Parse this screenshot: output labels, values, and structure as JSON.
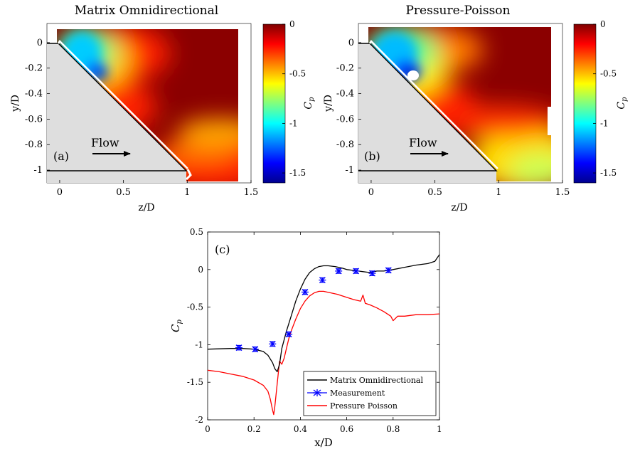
{
  "chart_data": [
    {
      "type": "heatmap",
      "panel_label": "(a)",
      "title": "Matrix Omnidirectional",
      "xlabel": "z/D",
      "ylabel": "y/D",
      "xlim": [
        -0.1,
        1.5
      ],
      "ylim": [
        -1.1,
        0.15
      ],
      "xticks": [
        "0",
        "0.5",
        "1",
        "1.5"
      ],
      "yticks": [
        "0",
        "-0.2",
        "-0.4",
        "-0.6",
        "-0.8",
        "-1"
      ],
      "annotation": "Flow",
      "colorbar": {
        "label": "C",
        "label_sub": "p",
        "min": -1.6,
        "max": 0,
        "ticks": [
          "0",
          "-0.5",
          "-1",
          "-1.5"
        ]
      }
    },
    {
      "type": "heatmap",
      "panel_label": "(b)",
      "title": "Pressure-Poisson",
      "xlabel": "z/D",
      "ylabel": "y/D",
      "xlim": [
        -0.1,
        1.5
      ],
      "ylim": [
        -1.1,
        0.15
      ],
      "xticks": [
        "0",
        "0.5",
        "1",
        "1.5"
      ],
      "yticks": [
        "0",
        "-0.2",
        "-0.4",
        "-0.6",
        "-0.8",
        "-1"
      ],
      "annotation": "Flow",
      "colorbar": {
        "label": "C",
        "label_sub": "p",
        "min": -1.6,
        "max": 0,
        "ticks": [
          "0",
          "-0.5",
          "-1",
          "-1.5"
        ]
      }
    },
    {
      "type": "line",
      "panel_label": "(c)",
      "xlabel": "x/D",
      "ylabel": "C",
      "ylabel_sub": "p",
      "xlim": [
        0,
        1
      ],
      "ylim": [
        -2,
        0.5
      ],
      "xticks": [
        "0",
        "0.2",
        "0.4",
        "0.6",
        "0.8",
        "1"
      ],
      "yticks": [
        "0.5",
        "0",
        "-0.5",
        "-1",
        "-1.5",
        "-2"
      ],
      "series": [
        {
          "name": "Matrix Omnidirectional",
          "color": "#000000",
          "x": [
            0,
            0.05,
            0.1,
            0.15,
            0.2,
            0.24,
            0.26,
            0.28,
            0.29,
            0.3,
            0.31,
            0.32,
            0.34,
            0.36,
            0.38,
            0.4,
            0.42,
            0.44,
            0.46,
            0.48,
            0.5,
            0.52,
            0.55,
            0.58,
            0.6,
            0.65,
            0.7,
            0.73,
            0.76,
            0.8,
            0.85,
            0.9,
            0.95,
            0.98,
            1.0
          ],
          "y": [
            -1.06,
            -1.055,
            -1.05,
            -1.05,
            -1.06,
            -1.09,
            -1.14,
            -1.24,
            -1.32,
            -1.36,
            -1.26,
            -1.05,
            -0.82,
            -0.62,
            -0.42,
            -0.26,
            -0.13,
            -0.04,
            0.01,
            0.04,
            0.05,
            0.05,
            0.04,
            0.02,
            0.0,
            -0.02,
            -0.04,
            -0.02,
            -0.02,
            0.0,
            0.03,
            0.06,
            0.08,
            0.11,
            0.2
          ]
        },
        {
          "name": "Pressure Poisson",
          "color": "#ff0000",
          "x": [
            0,
            0.05,
            0.1,
            0.15,
            0.2,
            0.24,
            0.26,
            0.27,
            0.28,
            0.285,
            0.29,
            0.3,
            0.31,
            0.32,
            0.33,
            0.34,
            0.35,
            0.36,
            0.38,
            0.4,
            0.42,
            0.44,
            0.46,
            0.48,
            0.5,
            0.53,
            0.56,
            0.6,
            0.63,
            0.66,
            0.67,
            0.68,
            0.7,
            0.73,
            0.76,
            0.79,
            0.8,
            0.82,
            0.85,
            0.9,
            0.95,
            1.0
          ],
          "y": [
            -1.34,
            -1.36,
            -1.39,
            -1.42,
            -1.47,
            -1.54,
            -1.62,
            -1.72,
            -1.87,
            -1.93,
            -1.82,
            -1.52,
            -1.22,
            -1.26,
            -1.18,
            -1.05,
            -0.92,
            -0.82,
            -0.66,
            -0.52,
            -0.42,
            -0.35,
            -0.31,
            -0.29,
            -0.29,
            -0.31,
            -0.33,
            -0.37,
            -0.4,
            -0.42,
            -0.34,
            -0.45,
            -0.47,
            -0.51,
            -0.56,
            -0.62,
            -0.68,
            -0.62,
            -0.62,
            -0.6,
            -0.6,
            -0.59
          ]
        },
        {
          "name": "Measurement",
          "color": "#0000ff",
          "x": [
            0.135,
            0.205,
            0.28,
            0.35,
            0.42,
            0.495,
            0.565,
            0.64,
            0.71,
            0.78
          ],
          "y": [
            -1.04,
            -1.06,
            -0.99,
            -0.86,
            -0.3,
            -0.14,
            -0.02,
            -0.02,
            -0.05,
            -0.01
          ],
          "err": [
            0.03,
            0.03,
            0.03,
            0.03,
            0.03,
            0.03,
            0.03,
            0.03,
            0.03,
            0.03
          ]
        }
      ],
      "legend": [
        "Matrix Omnidirectional",
        "Measurement",
        "Pressure Poisson"
      ],
      "legend_position": "bottom-right"
    }
  ]
}
